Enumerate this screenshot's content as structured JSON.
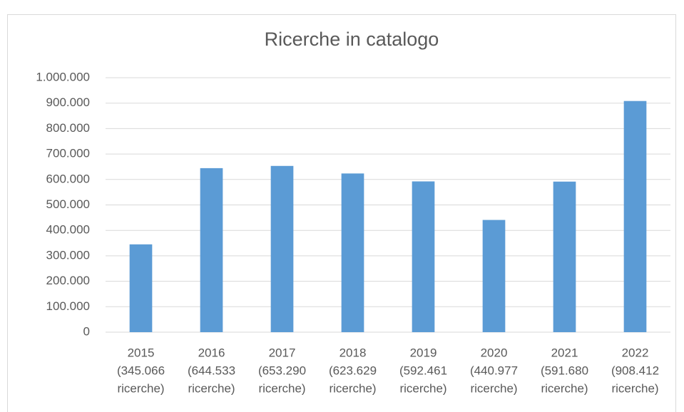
{
  "chart_data": {
    "type": "bar",
    "title": "Ricerche in catalogo",
    "categories": [
      [
        "2015",
        "(345.066",
        "ricerche)"
      ],
      [
        "2016",
        "(644.533",
        "ricerche)"
      ],
      [
        "2017",
        "(653.290",
        "ricerche)"
      ],
      [
        "2018",
        "(623.629",
        "ricerche)"
      ],
      [
        "2019",
        "(592.461",
        "ricerche)"
      ],
      [
        "2020",
        "(440.977",
        "ricerche)"
      ],
      [
        "2021",
        "(591.680",
        "ricerche)"
      ],
      [
        "2022",
        "(908.412",
        "ricerche)"
      ]
    ],
    "values": [
      345066,
      644533,
      653290,
      623629,
      592461,
      440977,
      591680,
      908412
    ],
    "color": "#5b9bd5",
    "ylim": [
      0,
      1000000
    ],
    "yticks": [
      0,
      {
        "value": 100000,
        "label": "100.000"
      },
      {
        "value": 200000,
        "label": "200.000"
      },
      {
        "value": 300000,
        "label": "300.000"
      },
      {
        "value": 400000,
        "label": "400.000"
      },
      {
        "value": 500000,
        "label": "500.000"
      },
      {
        "value": 600000,
        "label": "600.000"
      },
      {
        "value": 700000,
        "label": "700.000"
      },
      {
        "value": 800000,
        "label": "800.000"
      },
      {
        "value": 900000,
        "label": "900.000"
      },
      {
        "value": 1000000,
        "label": "1.000.000"
      }
    ],
    "grid": true
  }
}
